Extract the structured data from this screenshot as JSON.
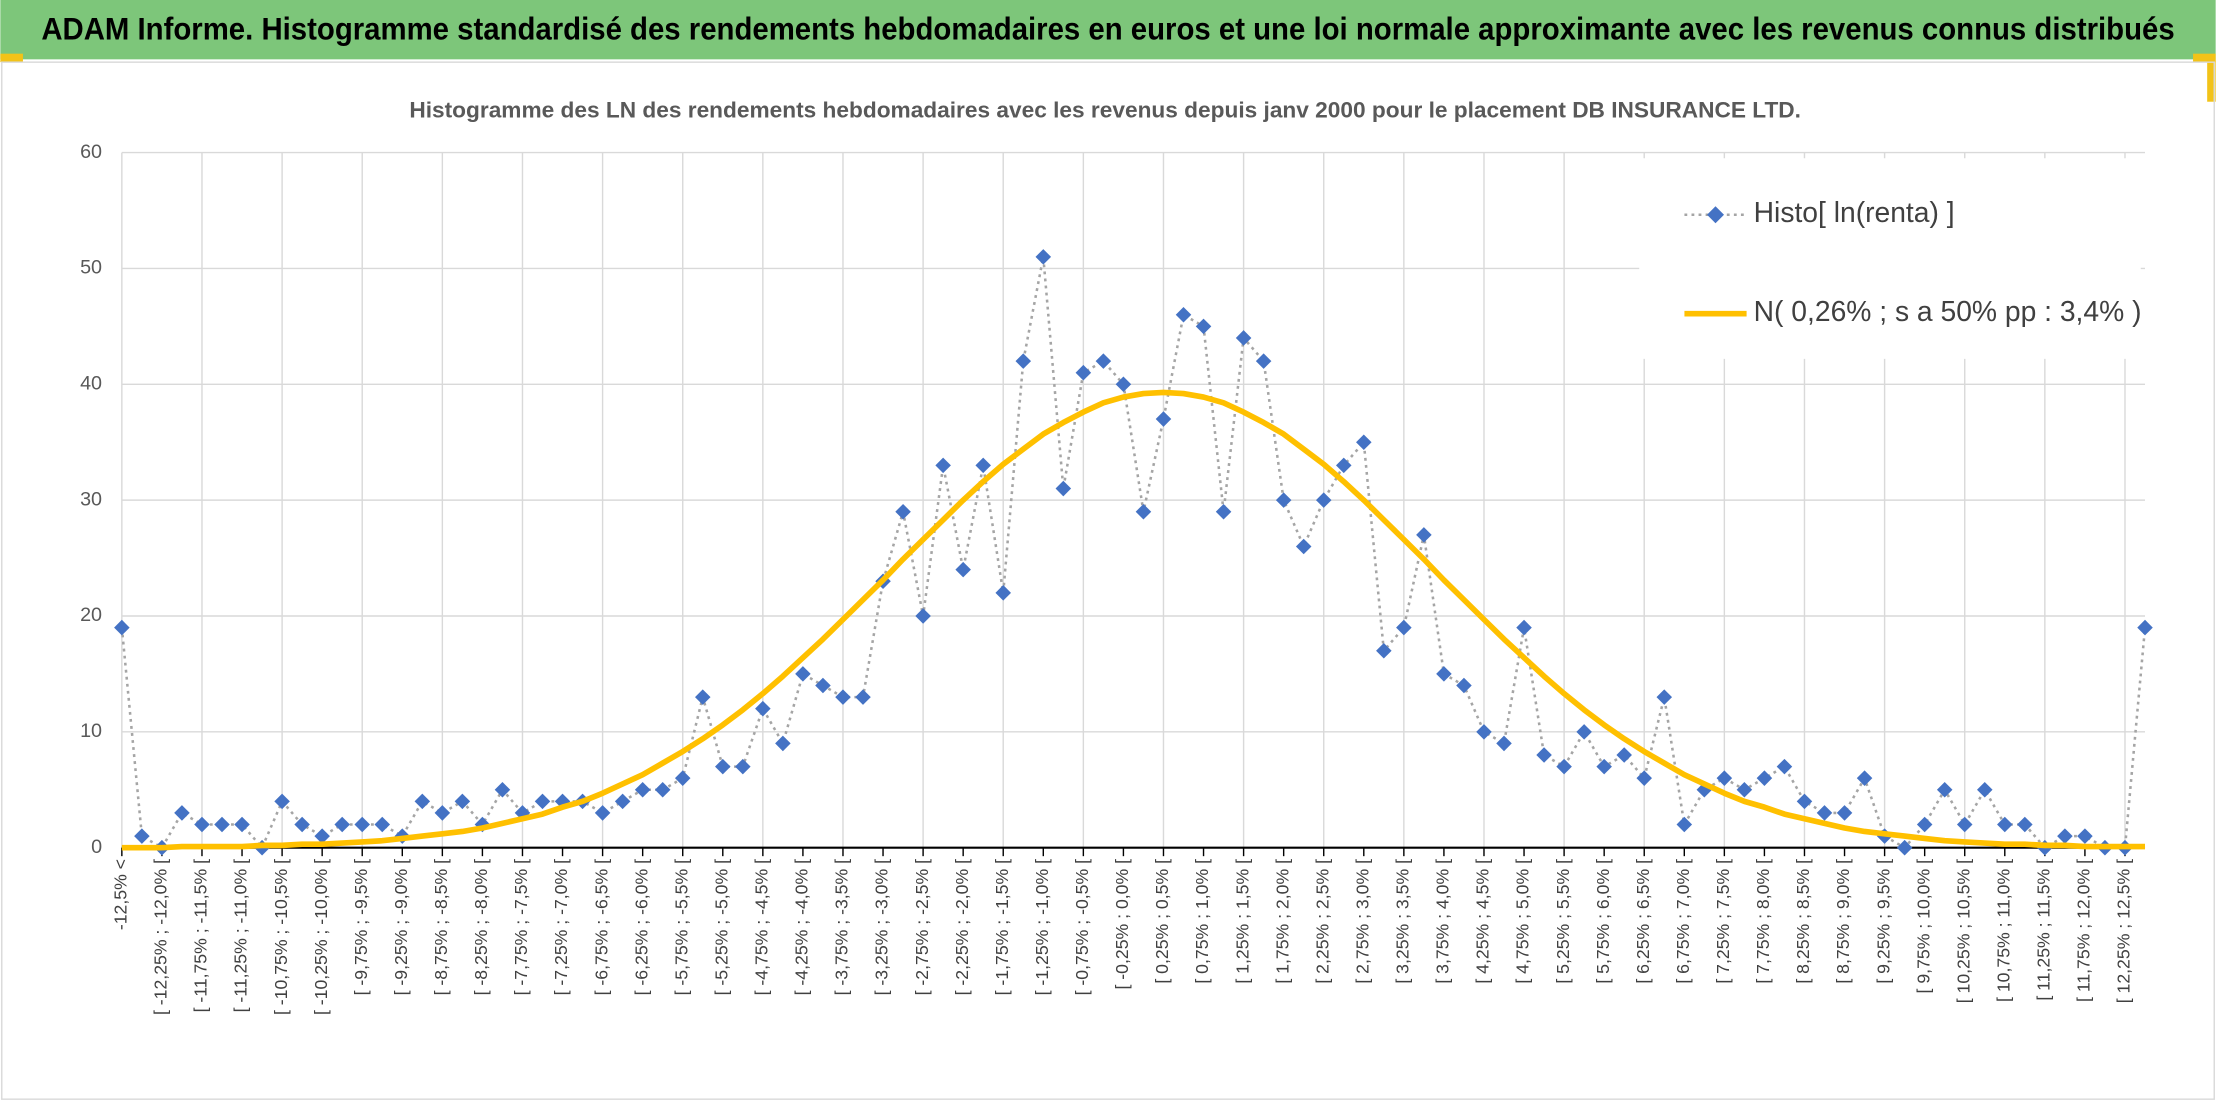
{
  "chart_data": {
    "type": "line",
    "title": "ADAM Informe. Histogramme standardisé des rendements hebdomadaires en euros et une loi normale approximante avec les revenus connus distribués",
    "subtitle": "Histogramme des LN des rendements hebdomadaires avec les revenus depuis janv 2000 pour le placement DB INSURANCE LTD.",
    "categories": [
      "-12,5% <",
      null,
      "[ -12,25% ; -12,0% [",
      null,
      "[ -11,75% ; -11,5% [",
      null,
      "[ -11,25% ; -11,0% [",
      null,
      "[ -10,75% ; -10,5% [",
      null,
      "[ -10,25% ; -10,0% [",
      null,
      "[ -9,75% ; -9,5% [",
      null,
      "[ -9,25% ; -9,0% [",
      null,
      "[ -8,75% ; -8,5% [",
      null,
      "[ -8,25% ; -8,0% [",
      null,
      "[ -7,75% ; -7,5% [",
      null,
      "[ -7,25% ; -7,0% [",
      null,
      "[ -6,75% ; -6,5% [",
      null,
      "[ -6,25% ; -6,0% [",
      null,
      "[ -5,75% ; -5,5% [",
      null,
      "[ -5,25% ; -5,0% [",
      null,
      "[ -4,75% ; -4,5% [",
      null,
      "[ -4,25% ; -4,0% [",
      null,
      "[ -3,75% ; -3,5% [",
      null,
      "[ -3,25% ; -3,0% [",
      null,
      "[ -2,75% ; -2,5% [",
      null,
      "[ -2,25% ; -2,0% [",
      null,
      "[ -1,75% ; -1,5% [",
      null,
      "[ -1,25% ; -1,0% [",
      null,
      "[ -0,75% ; -0,5% [",
      null,
      "[ -0,25% ; 0,0% [",
      null,
      "[ 0,25% ; 0,5% [",
      null,
      "[ 0,75% ; 1,0% [",
      null,
      "[ 1,25% ; 1,5% [",
      null,
      "[ 1,75% ; 2,0% [",
      null,
      "[ 2,25% ; 2,5% [",
      null,
      "[ 2,75% ; 3,0% [",
      null,
      "[ 3,25% ; 3,5% [",
      null,
      "[ 3,75% ; 4,0% [",
      null,
      "[ 4,25% ; 4,5% [",
      null,
      "[ 4,75% ; 5,0% [",
      null,
      "[ 5,25% ; 5,5% [",
      null,
      "[ 5,75% ; 6,0% [",
      null,
      "[ 6,25% ; 6,5% [",
      null,
      "[ 6,75% ; 7,0% [",
      null,
      "[ 7,25% ; 7,5% [",
      null,
      "[ 7,75% ; 8,0% [",
      null,
      "[ 8,25% ; 8,5% [",
      null,
      "[ 8,75% ; 9,0% [",
      null,
      "[ 9,25% ; 9,5% [",
      null,
      "[ 9,75% ; 10,0% [",
      null,
      "[ 10,25% ; 10,5% [",
      null,
      "[ 10,75% ; 11,0% [",
      null,
      "[ 11,25% ; 11,5% [",
      null,
      "[ 11,75% ; 12,0% [",
      null,
      "[ 12,25% ; 12,5% [",
      null
    ],
    "series": [
      {
        "name": "Histo[ ln(renta) ]",
        "color": "#4472c4",
        "values": [
          19,
          1,
          0,
          3,
          2,
          2,
          2,
          0,
          4,
          2,
          1,
          2,
          2,
          2,
          1,
          4,
          3,
          4,
          2,
          5,
          3,
          4,
          4,
          4,
          3,
          4,
          5,
          5,
          6,
          13,
          7,
          7,
          12,
          9,
          15,
          14,
          13,
          13,
          23,
          29,
          20,
          33,
          24,
          33,
          22,
          42,
          51,
          31,
          41,
          42,
          40,
          29,
          37,
          46,
          45,
          29,
          44,
          42,
          30,
          26,
          30,
          33,
          35,
          17,
          19,
          27,
          15,
          14,
          10,
          9,
          19,
          8,
          7,
          10,
          7,
          8,
          6,
          13,
          2,
          5,
          6,
          5,
          6,
          7,
          4,
          3,
          3,
          6,
          1,
          0,
          2,
          5,
          2,
          5,
          2,
          2,
          0,
          1,
          1,
          0,
          0,
          19
        ]
      },
      {
        "name": "N( 0,26% ; s a 50% pp : 3,4% )",
        "color": "#ffc000",
        "values": [
          0.0,
          0.0,
          0.0,
          0.1,
          0.1,
          0.1,
          0.1,
          0.2,
          0.2,
          0.3,
          0.3,
          0.4,
          0.5,
          0.6,
          0.8,
          1.0,
          1.2,
          1.4,
          1.7,
          2.1,
          2.5,
          2.9,
          3.5,
          4.0,
          4.7,
          5.5,
          6.3,
          7.3,
          8.3,
          9.4,
          10.6,
          11.9,
          13.3,
          14.8,
          16.4,
          18.0,
          19.7,
          21.4,
          23.1,
          24.9,
          26.6,
          28.3,
          30.0,
          31.6,
          33.1,
          34.4,
          35.7,
          36.7,
          37.6,
          38.4,
          38.9,
          39.2,
          39.3,
          39.2,
          38.9,
          38.4,
          37.6,
          36.7,
          35.7,
          34.4,
          33.1,
          31.6,
          30.0,
          28.3,
          26.6,
          24.9,
          23.1,
          21.4,
          19.7,
          18.0,
          16.4,
          14.8,
          13.3,
          11.9,
          10.6,
          9.4,
          8.3,
          7.3,
          6.3,
          5.5,
          4.7,
          4.0,
          3.5,
          2.9,
          2.5,
          2.1,
          1.7,
          1.4,
          1.2,
          1.0,
          0.8,
          0.6,
          0.5,
          0.4,
          0.3,
          0.3,
          0.2,
          0.2,
          0.1,
          0.1,
          0.1,
          0.1
        ]
      }
    ],
    "ylim": [
      0,
      60
    ],
    "yticks": [
      0,
      10,
      20,
      30,
      40,
      50,
      60
    ],
    "grid": true
  }
}
